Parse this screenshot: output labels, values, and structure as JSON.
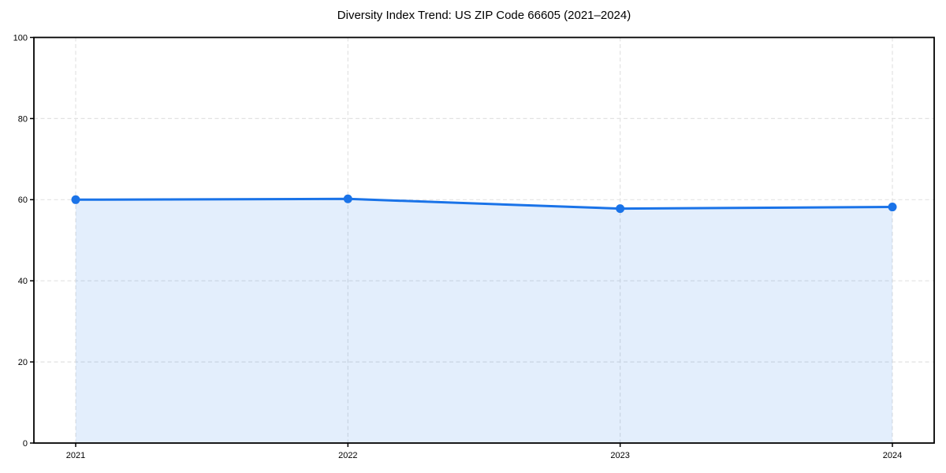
{
  "chart_data": {
    "type": "line",
    "title": "Diversity Index Trend: US ZIP Code 66605 (2021–2024)",
    "categories": [
      "2021",
      "2022",
      "2023",
      "2024"
    ],
    "series": [
      {
        "name": "Diversity Index",
        "values": [
          60.0,
          60.2,
          57.8,
          58.2
        ]
      }
    ],
    "xlabel": "",
    "ylabel": "",
    "ylim": [
      0,
      100
    ],
    "yticks": [
      0,
      20,
      40,
      60,
      80,
      100
    ],
    "grid": "dashed",
    "legend": "none",
    "area_fill": true,
    "colors": {
      "line": "#1a73e8",
      "marker": "#1a73e8",
      "fill": "rgba(26,115,232,0.12)",
      "grid": "#e2e2e2",
      "spine": "#000000",
      "background": "#ffffff",
      "text": "#000000"
    }
  }
}
